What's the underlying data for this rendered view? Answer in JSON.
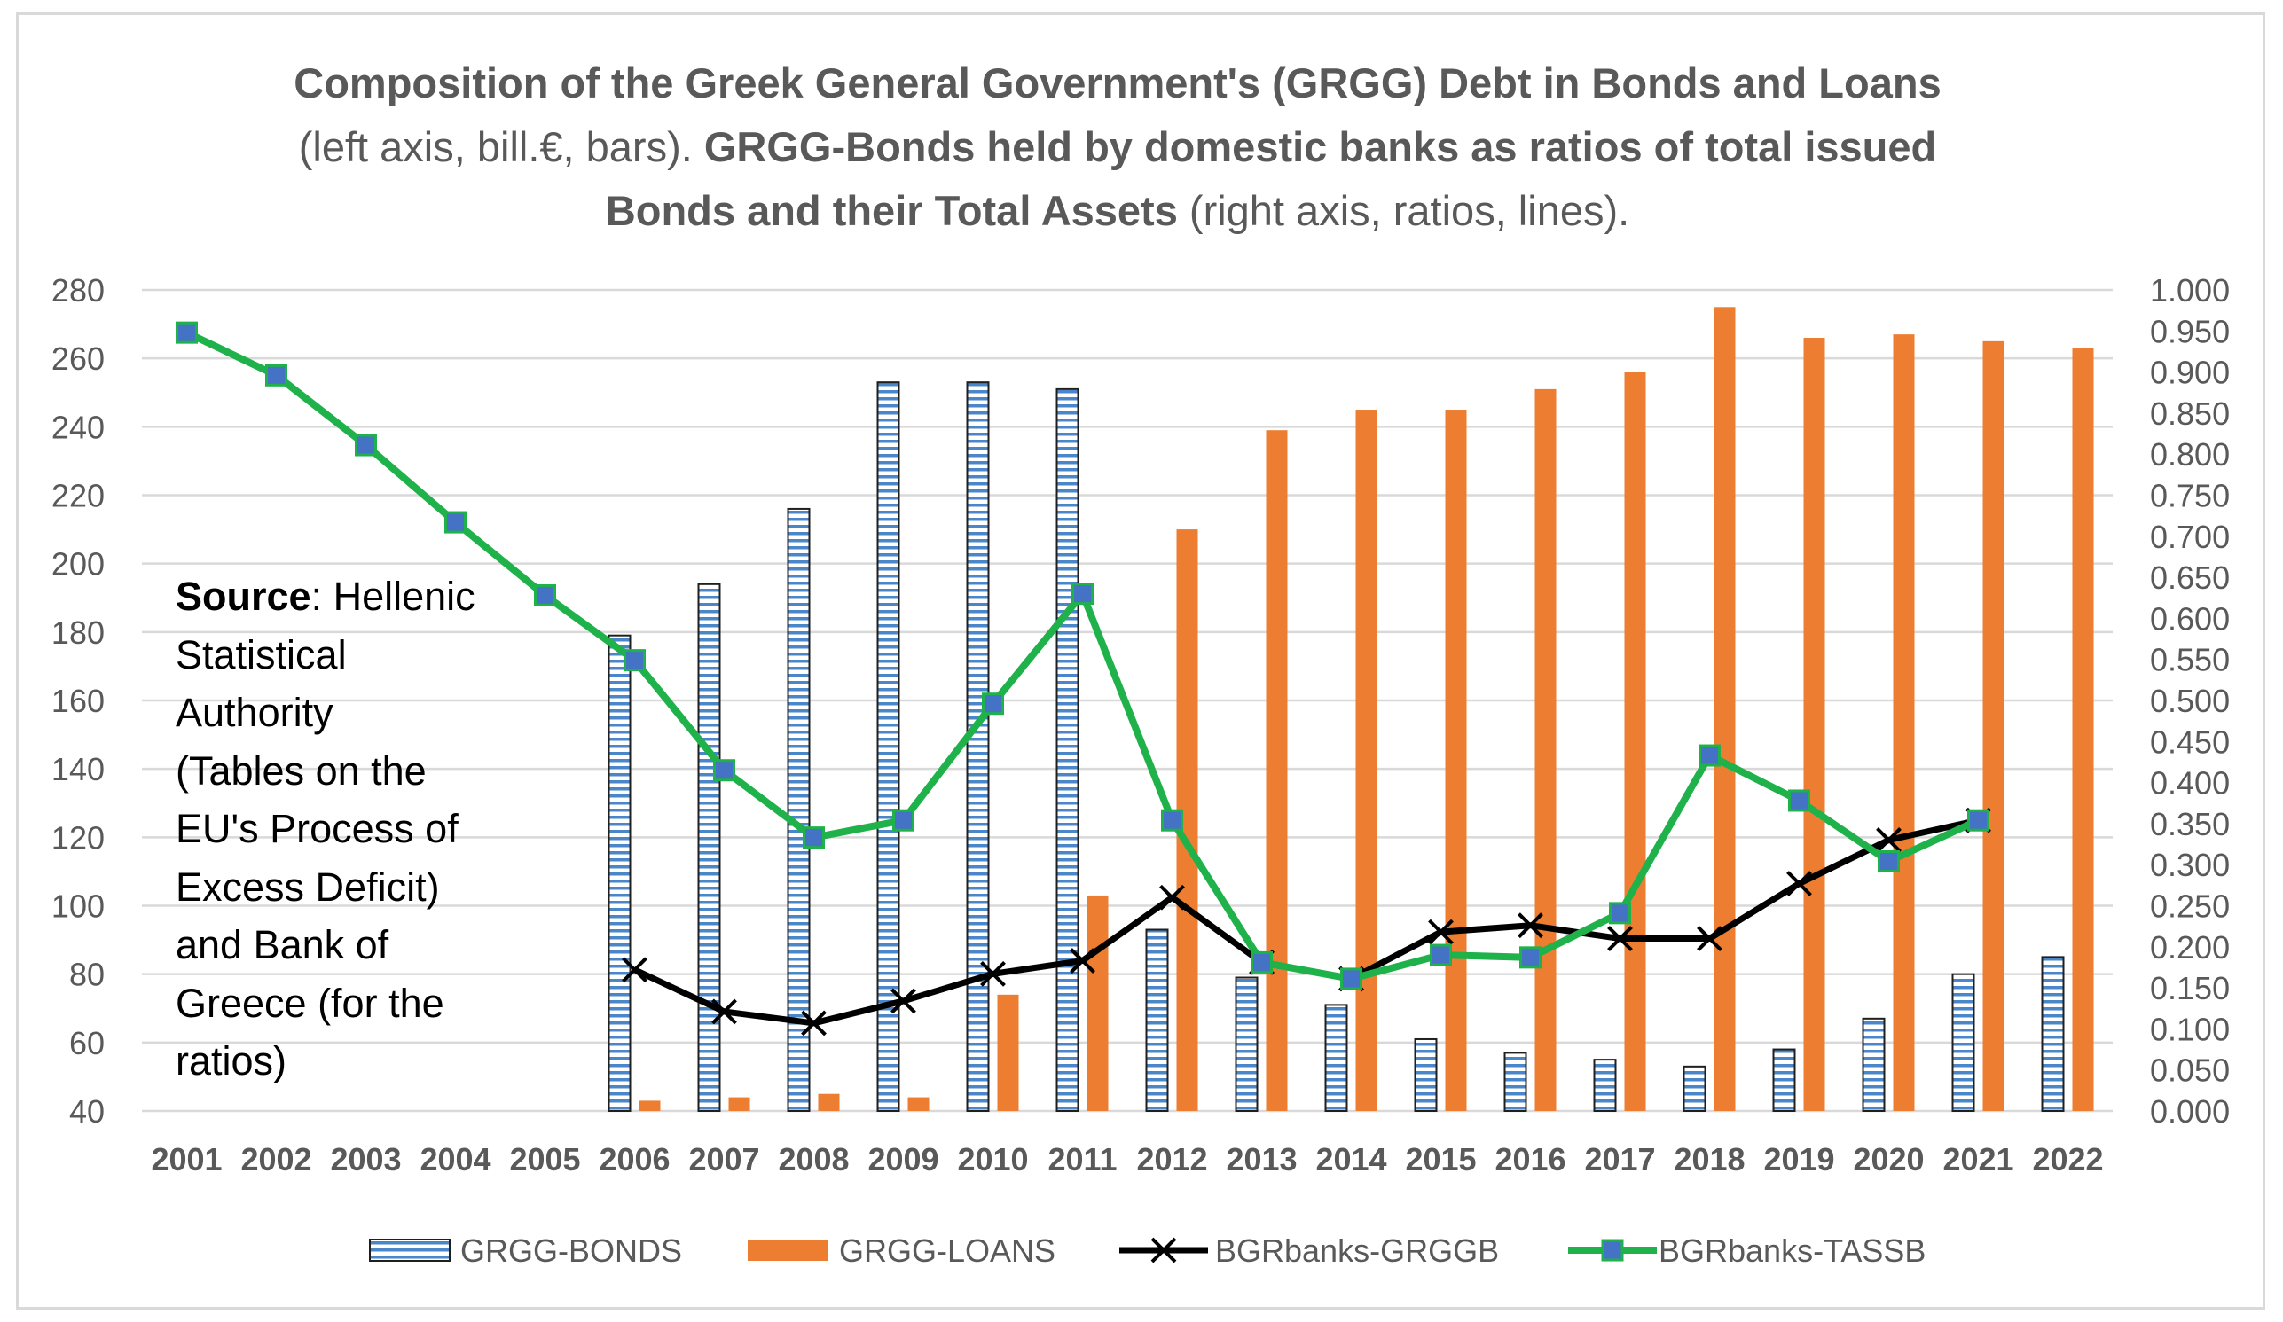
{
  "title": {
    "line1_bold": "Composition of the Greek General Government's (GRGG) Debt in Bonds and Loans",
    "line2_normal": "(left axis, bill.€, bars).",
    "line2_bold": "GRGG-Bonds held by domestic banks as ratios of total issued",
    "line3_bold": "Bonds and their Total Assets",
    "line3_normal": "(right axis, ratios, lines)."
  },
  "source": {
    "label": "Source",
    "lines": [
      ": Hellenic",
      "Statistical",
      "Authority",
      "(Tables on the",
      "EU's Process of",
      "Excess Deficit)",
      "and Bank of",
      "Greece (for the",
      "ratios)"
    ]
  },
  "colors": {
    "bonds_stroke": "#2e75b6",
    "bonds_stripe": "#4a86c8",
    "loans": "#ed7d31",
    "grggb_line": "#000000",
    "tassb_line": "#1fb24a",
    "tassb_marker": "#4472c4",
    "grid": "#d9d9d9"
  },
  "chart_data": {
    "type": "bar",
    "title": "Composition of the Greek General Government's (GRGG) Debt in Bonds and Loans (left axis, bill.€, bars). GRGG-Bonds held by domestic banks as ratios of total issued Bonds and their Total Assets (right axis, ratios, lines).",
    "categories": [
      "2001",
      "2002",
      "2003",
      "2004",
      "2005",
      "2006",
      "2007",
      "2008",
      "2009",
      "2010",
      "2011",
      "2012",
      "2013",
      "2014",
      "2015",
      "2016",
      "2017",
      "2018",
      "2019",
      "2020",
      "2021",
      "2022"
    ],
    "left_axis": {
      "ylim": [
        40,
        280
      ],
      "ticks": [
        "40",
        "60",
        "80",
        "100",
        "120",
        "140",
        "160",
        "180",
        "200",
        "220",
        "240",
        "260",
        "280"
      ]
    },
    "right_axis": {
      "ylim": [
        0,
        1
      ],
      "ticks": [
        "0.000",
        "0.050",
        "0.100",
        "0.150",
        "0.200",
        "0.250",
        "0.300",
        "0.350",
        "0.400",
        "0.450",
        "0.500",
        "0.550",
        "0.600",
        "0.650",
        "0.700",
        "0.750",
        "0.800",
        "0.850",
        "0.900",
        "0.950",
        "1.000"
      ]
    },
    "bar_series": [
      {
        "name": "GRGG-BONDS",
        "axis": "left",
        "values": [
          null,
          null,
          null,
          null,
          null,
          179,
          194,
          216,
          253,
          253,
          251,
          93,
          79,
          71,
          61,
          57,
          55,
          53,
          58,
          67,
          80,
          85
        ]
      },
      {
        "name": "GRGG-LOANS",
        "axis": "left",
        "values": [
          null,
          null,
          null,
          null,
          null,
          43,
          44,
          45,
          44,
          74,
          103,
          210,
          239,
          245,
          245,
          251,
          256,
          275,
          266,
          267,
          265,
          263
        ]
      }
    ],
    "line_series": [
      {
        "name": "BGRbanks-GRGGB",
        "axis": "right",
        "values": [
          null,
          null,
          null,
          null,
          null,
          0.172,
          0.121,
          0.107,
          0.134,
          0.167,
          0.183,
          0.26,
          0.181,
          0.161,
          0.218,
          0.226,
          0.21,
          0.21,
          0.277,
          0.33,
          0.354,
          null
        ]
      },
      {
        "name": "BGRbanks-TASSB",
        "axis": "right",
        "values": [
          0.948,
          0.896,
          0.811,
          0.717,
          0.628,
          0.549,
          0.415,
          0.333,
          0.354,
          0.496,
          0.63,
          0.354,
          0.181,
          0.161,
          0.19,
          0.187,
          0.241,
          0.433,
          0.378,
          0.304,
          0.354,
          null
        ]
      }
    ],
    "legend": [
      "GRGG-BONDS",
      "GRGG-LOANS",
      "BGRbanks-GRGGB",
      "BGRbanks-TASSB"
    ],
    "legend_position": "bottom",
    "grid": true
  }
}
